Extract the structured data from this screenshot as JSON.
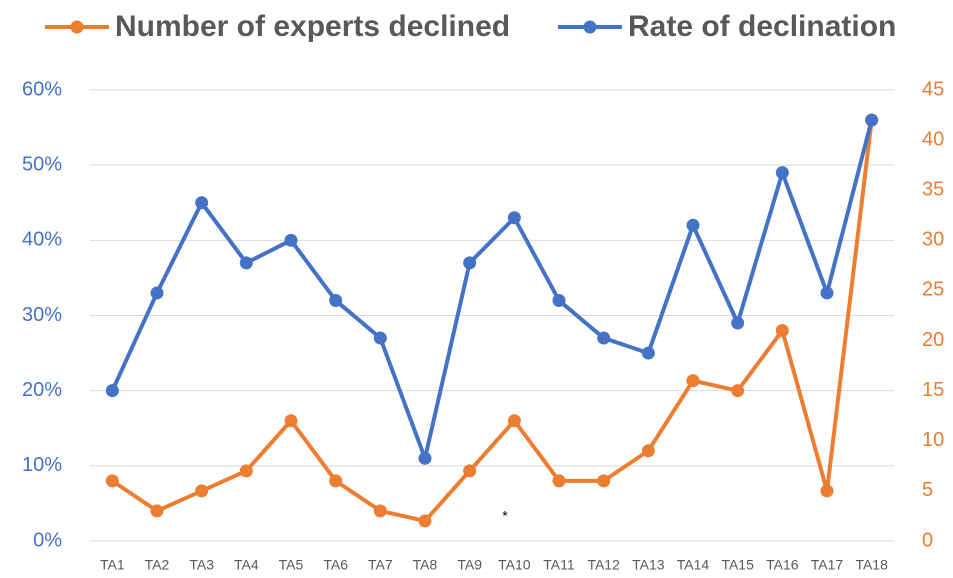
{
  "chart_data": {
    "type": "line",
    "categories": [
      "TA1",
      "TA2",
      "TA3",
      "TA4",
      "TA5",
      "TA6",
      "TA7",
      "TA8",
      "TA9",
      "TA10",
      "TA11",
      "TA12",
      "TA13",
      "TA14",
      "TA15",
      "TA16",
      "TA17",
      "TA18"
    ],
    "series": [
      {
        "name": "Number of experts declined",
        "color": "#ed7d31",
        "axis": "y2",
        "values": [
          6,
          3,
          5,
          7,
          12,
          6,
          3,
          2,
          7,
          12,
          6,
          6,
          9,
          16,
          15,
          21,
          5,
          42
        ]
      },
      {
        "name": "Rate of declination",
        "color": "#4472c4",
        "axis": "y",
        "values": [
          20,
          33,
          45,
          37,
          40,
          32,
          27,
          11,
          37,
          43,
          32,
          27,
          25,
          42,
          29,
          49,
          33,
          56
        ]
      }
    ],
    "ylim": [
      0,
      60
    ],
    "yticks": [
      {
        "value": 0,
        "label": "0%"
      },
      {
        "value": 10,
        "label": "10%"
      },
      {
        "value": 20,
        "label": "20%"
      },
      {
        "value": 30,
        "label": "30%"
      },
      {
        "value": 40,
        "label": "40%"
      },
      {
        "value": 50,
        "label": "50%"
      },
      {
        "value": 60,
        "label": "60%"
      }
    ],
    "y2lim": [
      0,
      45
    ],
    "y2ticks": [
      0,
      5,
      10,
      15,
      20,
      25,
      30,
      35,
      40,
      45
    ],
    "grid": true,
    "legend": "top",
    "annotations": [
      "*"
    ]
  }
}
